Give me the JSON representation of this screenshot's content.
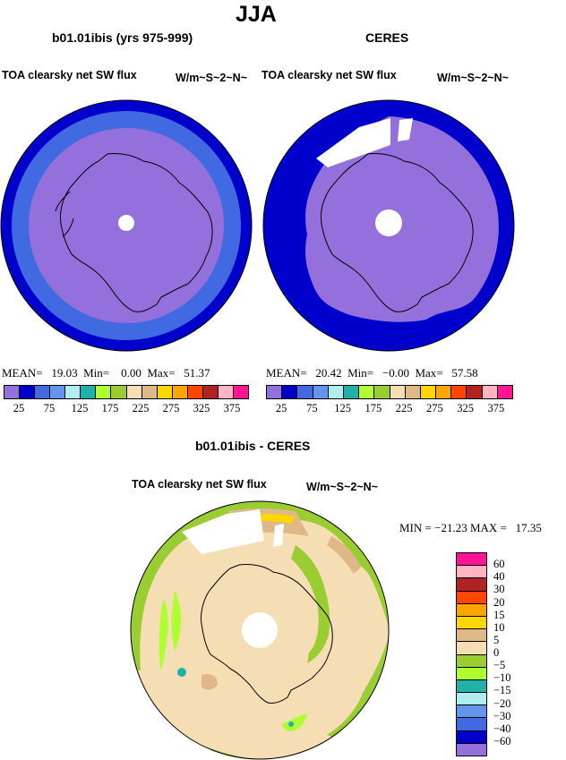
{
  "title": "JJA",
  "panel_left": {
    "case": "b01.01ibis (yrs 975-999)",
    "variable": "TOA clearsky net SW flux",
    "units": "W/m~S~2~N~",
    "stats": "MEAN=   19.03  Min=    0.00  Max=   51.37"
  },
  "panel_right": {
    "case": "CERES",
    "variable": "TOA clearsky net SW flux",
    "units": "W/m~S~2~N~",
    "stats": "MEAN=   20.42  Min=   −0.00  Max=   57.58"
  },
  "panel_diff": {
    "case": "b01.01ibis - CERES",
    "variable": "TOA clearsky net SW flux",
    "units": "W/m~S~2~N~",
    "stats": "MIN = −21.23 MAX =   17.35"
  },
  "colorbar_abs": {
    "colors": [
      "#9370db",
      "#0000cd",
      "#4169e1",
      "#6495ed",
      "#afeeee",
      "#20b2aa",
      "#adff2f",
      "#9acd32",
      "#f5deb3",
      "#deb887",
      "#ffd700",
      "#ffa500",
      "#ff4500",
      "#b22222",
      "#ffb6c1",
      "#ff1493"
    ],
    "labels": [
      "25",
      "75",
      "125",
      "175",
      "225",
      "275",
      "325",
      "375"
    ]
  },
  "colorbar_diff": {
    "colors": [
      "#ff1493",
      "#ffb6c1",
      "#b22222",
      "#ff4500",
      "#ffa500",
      "#ffd700",
      "#deb887",
      "#f5deb3",
      "#9acd32",
      "#adff2f",
      "#20b2aa",
      "#afeeee",
      "#6495ed",
      "#4169e1",
      "#0000cd",
      "#9370db"
    ],
    "labels": [
      "60",
      "40",
      "30",
      "20",
      "15",
      "10",
      "5",
      "0",
      "−5",
      "−10",
      "−15",
      "−20",
      "−30",
      "−40",
      "−60"
    ]
  }
}
